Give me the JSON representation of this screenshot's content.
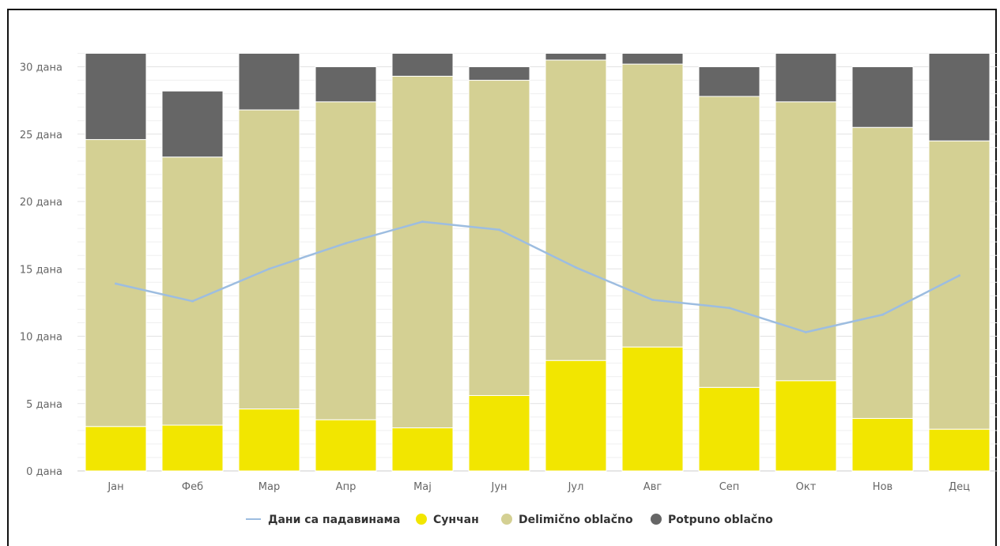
{
  "chart_data": {
    "type": "bar",
    "stacked": true,
    "categories": [
      "Јан",
      "Феб",
      "Мар",
      "Апр",
      "Мај",
      "Јун",
      "Јул",
      "Авг",
      "Сеп",
      "Окт",
      "Нов",
      "Дец"
    ],
    "series": [
      {
        "name": "Сунчан",
        "color": "#f2e600",
        "values": [
          3.3,
          3.4,
          4.6,
          3.8,
          3.2,
          5.6,
          8.2,
          9.2,
          6.2,
          6.7,
          3.9,
          3.1
        ]
      },
      {
        "name": "Delimično oblačno",
        "color": "#d4d093",
        "values": [
          21.3,
          19.9,
          22.2,
          23.6,
          26.1,
          23.4,
          22.3,
          21.0,
          21.6,
          20.7,
          21.6,
          21.4
        ]
      },
      {
        "name": "Potpuno oblačno",
        "color": "#666666",
        "values": [
          6.4,
          4.9,
          4.2,
          2.6,
          1.7,
          1.0,
          0.5,
          0.8,
          2.2,
          3.6,
          4.5,
          6.5
        ]
      }
    ],
    "line_series": {
      "name": "Дани са падавинама",
      "color": "#9dbde0",
      "values": [
        13.9,
        12.6,
        15.0,
        16.9,
        18.5,
        17.9,
        15.1,
        12.7,
        12.1,
        10.3,
        11.6,
        14.5
      ]
    },
    "ylim": [
      0,
      31
    ],
    "yticks": [
      0,
      5,
      10,
      15,
      20,
      25,
      30
    ],
    "ytick_labels": [
      "0 дана",
      "5 дана",
      "10 дана",
      "15 дана",
      "20 дана",
      "25 дана",
      "30 дана"
    ],
    "grid": true,
    "legend_position": "bottom-center",
    "legend": [
      "Дани са падавинама",
      "Сунчан",
      "Delimično oblačno",
      "Potpuno oblačno"
    ]
  }
}
